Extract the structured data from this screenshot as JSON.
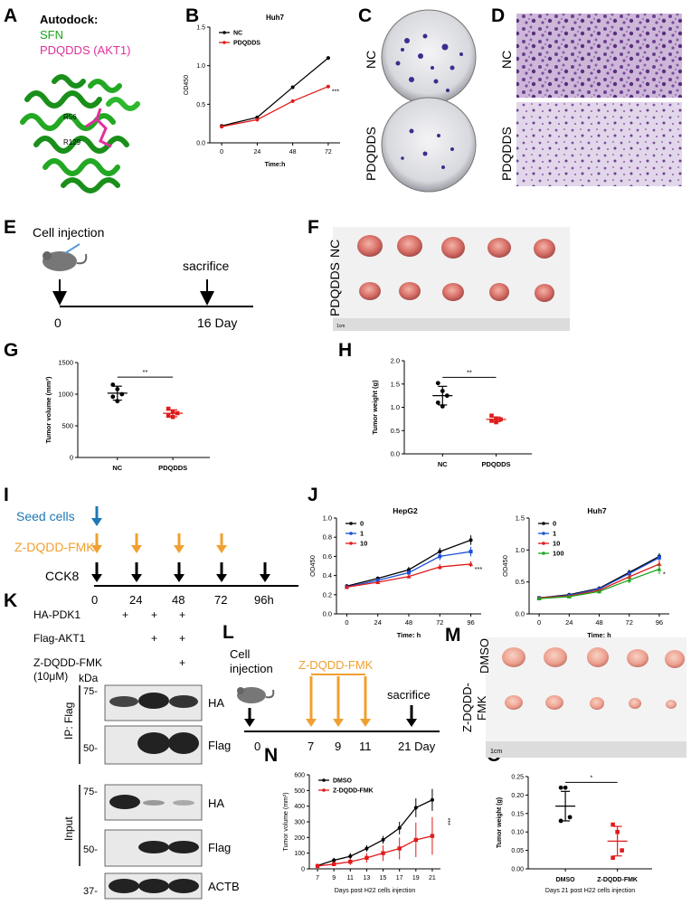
{
  "panel_letters": [
    "A",
    "B",
    "C",
    "D",
    "E",
    "F",
    "G",
    "H",
    "I",
    "J",
    "K",
    "L",
    "M",
    "N",
    "O"
  ],
  "panelA": {
    "title": "Autodock:",
    "line1": "SFN",
    "line2": "PDQDDS (AKT1)",
    "residue1": "R56",
    "residue2": "R129",
    "colors": {
      "sfn": "#1aa51a",
      "pdqdds": "#e0309a"
    }
  },
  "panelC": {
    "row1": "NC",
    "row2": "PDQDDS"
  },
  "panelD": {
    "row1": "NC",
    "row2": "PDQDDS"
  },
  "panelE": {
    "cell_injection": "Cell injection",
    "sacrifice": "sacrifice",
    "start": "0",
    "end": "16 Day"
  },
  "panelF": {
    "row1": "NC",
    "row2": "PDQDDS",
    "ruler_start": "1cm"
  },
  "panelI": {
    "seed": "Seed cells",
    "drug": "Z-DQDD-FMK",
    "assay": "CCK8",
    "ticks": [
      "0",
      "24",
      "48",
      "72",
      "96h"
    ],
    "colors": {
      "seed": "#1f77b4",
      "drug": "#f0a030"
    }
  },
  "panelK": {
    "row_labels": [
      "HA-PDK1",
      "Flag-AKT1",
      "Z-DQDD-FMK",
      "(10μM)"
    ],
    "signs": [
      [
        "+",
        "+",
        "+"
      ],
      [
        "",
        "+",
        "+"
      ],
      [
        "",
        "",
        "+"
      ]
    ],
    "kda": "kDa",
    "markers": [
      "75-",
      "50-",
      "75-",
      "50-",
      "37-"
    ],
    "groups": [
      "IP: Flag",
      "Input"
    ],
    "blots": [
      "HA",
      "Flag",
      "HA",
      "Flag",
      "ACTB"
    ]
  },
  "panelL": {
    "cell": "Cell",
    "injection": "injection",
    "drug": "Z-DQDD-FMK",
    "sacrifice": "sacrifice",
    "ticks": [
      "0",
      "7",
      "9",
      "11",
      "21 Day"
    ]
  },
  "panelM": {
    "row1": "DMSO",
    "row2a": "Z-DQDD-",
    "row2b": "FMK",
    "ruler_start": "1cm"
  },
  "chart_data": [
    {
      "panel": "B",
      "type": "line",
      "title": "Huh7",
      "xlabel": "Time:h",
      "ylabel": "OD450",
      "x": [
        0,
        24,
        48,
        72
      ],
      "ylim": [
        0,
        1.5
      ],
      "yticks": [
        "0.0",
        "0.5",
        "1.0",
        "1.5"
      ],
      "series": [
        {
          "name": "NC",
          "values": [
            0.22,
            0.33,
            0.72,
            1.1
          ],
          "color": "#000000"
        },
        {
          "name": "PDQDDS",
          "values": [
            0.21,
            0.3,
            0.54,
            0.73
          ],
          "color": "#e01b1b"
        }
      ],
      "annotation": "***"
    },
    {
      "panel": "G",
      "type": "scatter",
      "ylabel": "Tumor volume (mm³)",
      "ylim": [
        0,
        1500
      ],
      "yticks": [
        "0",
        "500",
        "1000",
        "1500"
      ],
      "categories": [
        "NC",
        "PDQDDS"
      ],
      "groups": [
        {
          "name": "NC",
          "values": [
            1150,
            1080,
            1000,
            960,
            890
          ],
          "mean": 1016,
          "sd": 110,
          "color": "#000000"
        },
        {
          "name": "PDQDDS",
          "values": [
            770,
            720,
            700,
            660,
            640
          ],
          "mean": 698,
          "sd": 55,
          "color": "#e01b1b"
        }
      ],
      "significance": "**"
    },
    {
      "panel": "H",
      "type": "scatter",
      "ylabel": "Tumor weight (g)",
      "ylim": [
        0,
        2.0
      ],
      "yticks": [
        "0.0",
        "0.5",
        "1.0",
        "1.5",
        "2.0"
      ],
      "categories": [
        "NC",
        "PDQDDS"
      ],
      "groups": [
        {
          "name": "NC",
          "values": [
            1.52,
            1.35,
            1.25,
            1.1,
            1.02
          ],
          "mean": 1.25,
          "sd": 0.2,
          "color": "#000000"
        },
        {
          "name": "PDQDDS",
          "values": [
            0.82,
            0.76,
            0.74,
            0.71,
            0.68
          ],
          "mean": 0.74,
          "sd": 0.05,
          "color": "#e01b1b"
        }
      ],
      "significance": "**"
    },
    {
      "panel": "J1",
      "type": "line",
      "title": "HepG2",
      "xlabel": "Time: h",
      "ylabel": "OD450",
      "x": [
        0,
        24,
        48,
        72,
        96
      ],
      "ylim": [
        0,
        1.0
      ],
      "yticks": [
        "0.0",
        "0.2",
        "0.4",
        "0.6",
        "0.8",
        "1.0"
      ],
      "series": [
        {
          "name": "0",
          "values": [
            0.29,
            0.37,
            0.46,
            0.65,
            0.77
          ],
          "err": [
            0.02,
            0.02,
            0.03,
            0.04,
            0.05
          ],
          "color": "#000000"
        },
        {
          "name": "1",
          "values": [
            0.28,
            0.35,
            0.43,
            0.6,
            0.65
          ],
          "err": [
            0.02,
            0.02,
            0.03,
            0.04,
            0.05
          ],
          "color": "#1a4fd6"
        },
        {
          "name": "10",
          "values": [
            0.28,
            0.33,
            0.39,
            0.49,
            0.52
          ],
          "err": [
            0.02,
            0.02,
            0.02,
            0.03,
            0.03
          ],
          "color": "#e01b1b"
        }
      ],
      "annotation": "***"
    },
    {
      "panel": "J2",
      "type": "line",
      "title": "Huh7",
      "xlabel": "Time: h",
      "ylabel": "OD450",
      "x": [
        0,
        24,
        48,
        72,
        96
      ],
      "ylim": [
        0,
        1.5
      ],
      "yticks": [
        "0.0",
        "0.5",
        "1.0",
        "1.5"
      ],
      "series": [
        {
          "name": "0",
          "values": [
            0.25,
            0.3,
            0.4,
            0.65,
            0.9
          ],
          "err": [
            0.02,
            0.02,
            0.03,
            0.04,
            0.05
          ],
          "color": "#000000"
        },
        {
          "name": "1",
          "values": [
            0.25,
            0.29,
            0.39,
            0.63,
            0.88
          ],
          "err": [
            0.02,
            0.02,
            0.03,
            0.04,
            0.05
          ],
          "color": "#1a4fd6"
        },
        {
          "name": "10",
          "values": [
            0.25,
            0.28,
            0.37,
            0.58,
            0.78
          ],
          "err": [
            0.02,
            0.02,
            0.03,
            0.05,
            0.06
          ],
          "color": "#e01b1b"
        },
        {
          "name": "100",
          "values": [
            0.24,
            0.27,
            0.35,
            0.53,
            0.7
          ],
          "err": [
            0.02,
            0.02,
            0.03,
            0.05,
            0.08
          ],
          "color": "#1ca51c"
        }
      ],
      "annotation": "*"
    },
    {
      "panel": "N",
      "type": "line",
      "xlabel": "Days post H22 cells injection",
      "ylabel": "Tumor volume (mm³)",
      "x": [
        7,
        9,
        11,
        13,
        15,
        17,
        19,
        21
      ],
      "ylim": [
        0,
        600
      ],
      "yticks": [
        "0",
        "100",
        "200",
        "300",
        "400",
        "500",
        "600"
      ],
      "series": [
        {
          "name": "DMSO",
          "values": [
            20,
            55,
            80,
            130,
            185,
            260,
            390,
            440
          ],
          "err": [
            10,
            15,
            20,
            20,
            25,
            40,
            60,
            70
          ],
          "color": "#000000"
        },
        {
          "name": "Z-DQDD-FMK",
          "values": [
            18,
            30,
            45,
            70,
            100,
            130,
            185,
            210
          ],
          "err": [
            10,
            12,
            20,
            30,
            50,
            70,
            110,
            120
          ],
          "color": "#e01b1b"
        }
      ],
      "annotation": "***"
    },
    {
      "panel": "O",
      "type": "scatter",
      "title": "",
      "xlabel": "Days 21 post H22 cells injection",
      "ylabel": "Tumor weight (g)",
      "ylim": [
        0,
        0.25
      ],
      "yticks": [
        "0.00",
        "0.05",
        "0.10",
        "0.15",
        "0.20",
        "0.25"
      ],
      "categories": [
        "DMSO",
        "Z-DQDD-FMK"
      ],
      "groups": [
        {
          "name": "DMSO",
          "values": [
            0.22,
            0.22,
            0.14,
            0.13
          ],
          "mean": 0.17,
          "sd": 0.04,
          "color": "#000000"
        },
        {
          "name": "Z-DQDD-FMK",
          "values": [
            0.12,
            0.1,
            0.05,
            0.03
          ],
          "mean": 0.075,
          "sd": 0.04,
          "color": "#e01b1b"
        }
      ],
      "significance": "*"
    }
  ]
}
